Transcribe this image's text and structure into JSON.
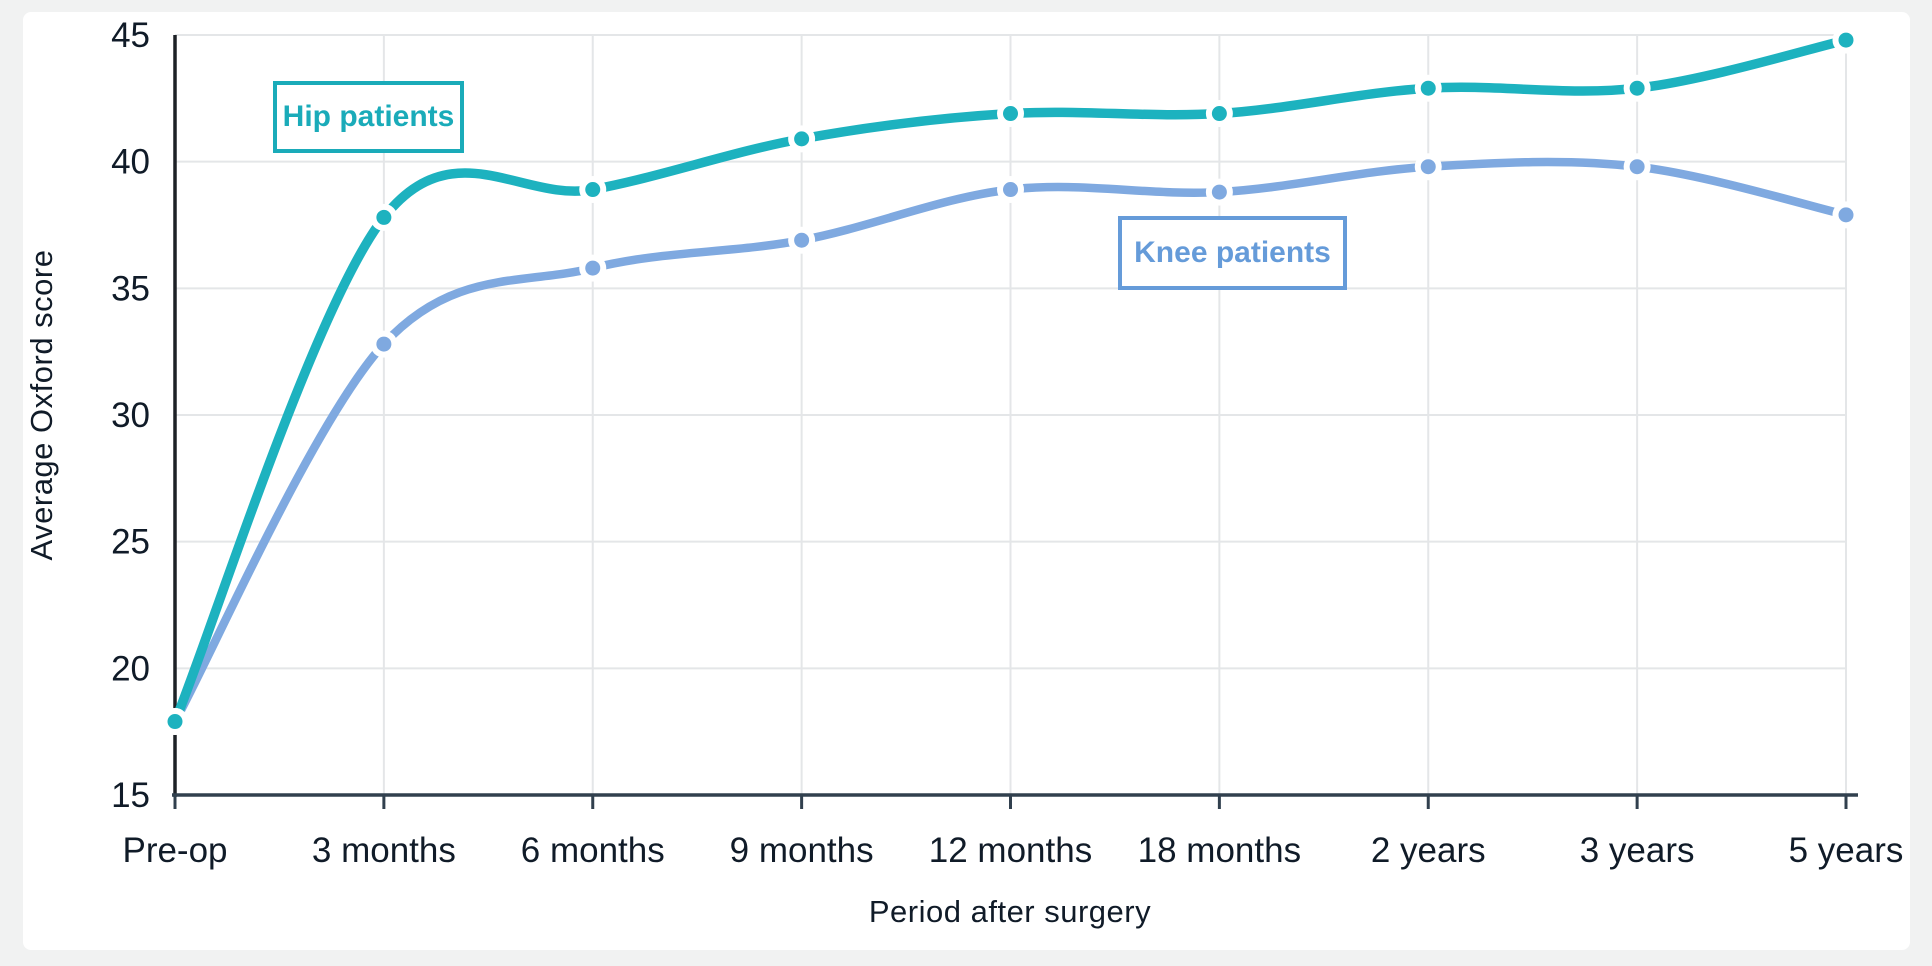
{
  "page": {
    "background_color": "#f1f2f2",
    "card_color": "#ffffff"
  },
  "chart_data": {
    "type": "line",
    "title": "",
    "xlabel": "Period after surgery",
    "ylabel": "Average Oxford score",
    "categories": [
      "Pre-op",
      "3 months",
      "6 months",
      "9 months",
      "12 months",
      "18 months",
      "2 years",
      "3 years",
      "5 years"
    ],
    "series": [
      {
        "name": "Hip patients",
        "color": "#1db2bf",
        "label_color": "#1aabb9",
        "values": [
          17.9,
          37.8,
          38.9,
          40.9,
          41.9,
          41.9,
          42.9,
          42.9,
          44.8
        ]
      },
      {
        "name": "Knee patients",
        "color": "#7fa9e0",
        "label_color": "#659bd9",
        "values": [
          17.9,
          32.8,
          35.8,
          36.9,
          38.9,
          38.8,
          39.8,
          39.8,
          37.9
        ]
      }
    ],
    "ylim": [
      15,
      45
    ],
    "yticks": [
      15,
      20,
      25,
      30,
      35,
      40,
      45
    ],
    "grid": true,
    "smooth": true,
    "legend_position": "on-plot-annotation-boxes",
    "style": {
      "tick_text_color": "#101b28",
      "tick_font_size": 35,
      "grid_color": "#e4e6e8",
      "x_axis_color": "#31404e",
      "y_axis_color": "#1d2126",
      "line_width_hip": 9.5,
      "line_width_knee": 8.5,
      "marker_outer_radius": 13.5,
      "marker_inner_radius": 7.5
    }
  }
}
